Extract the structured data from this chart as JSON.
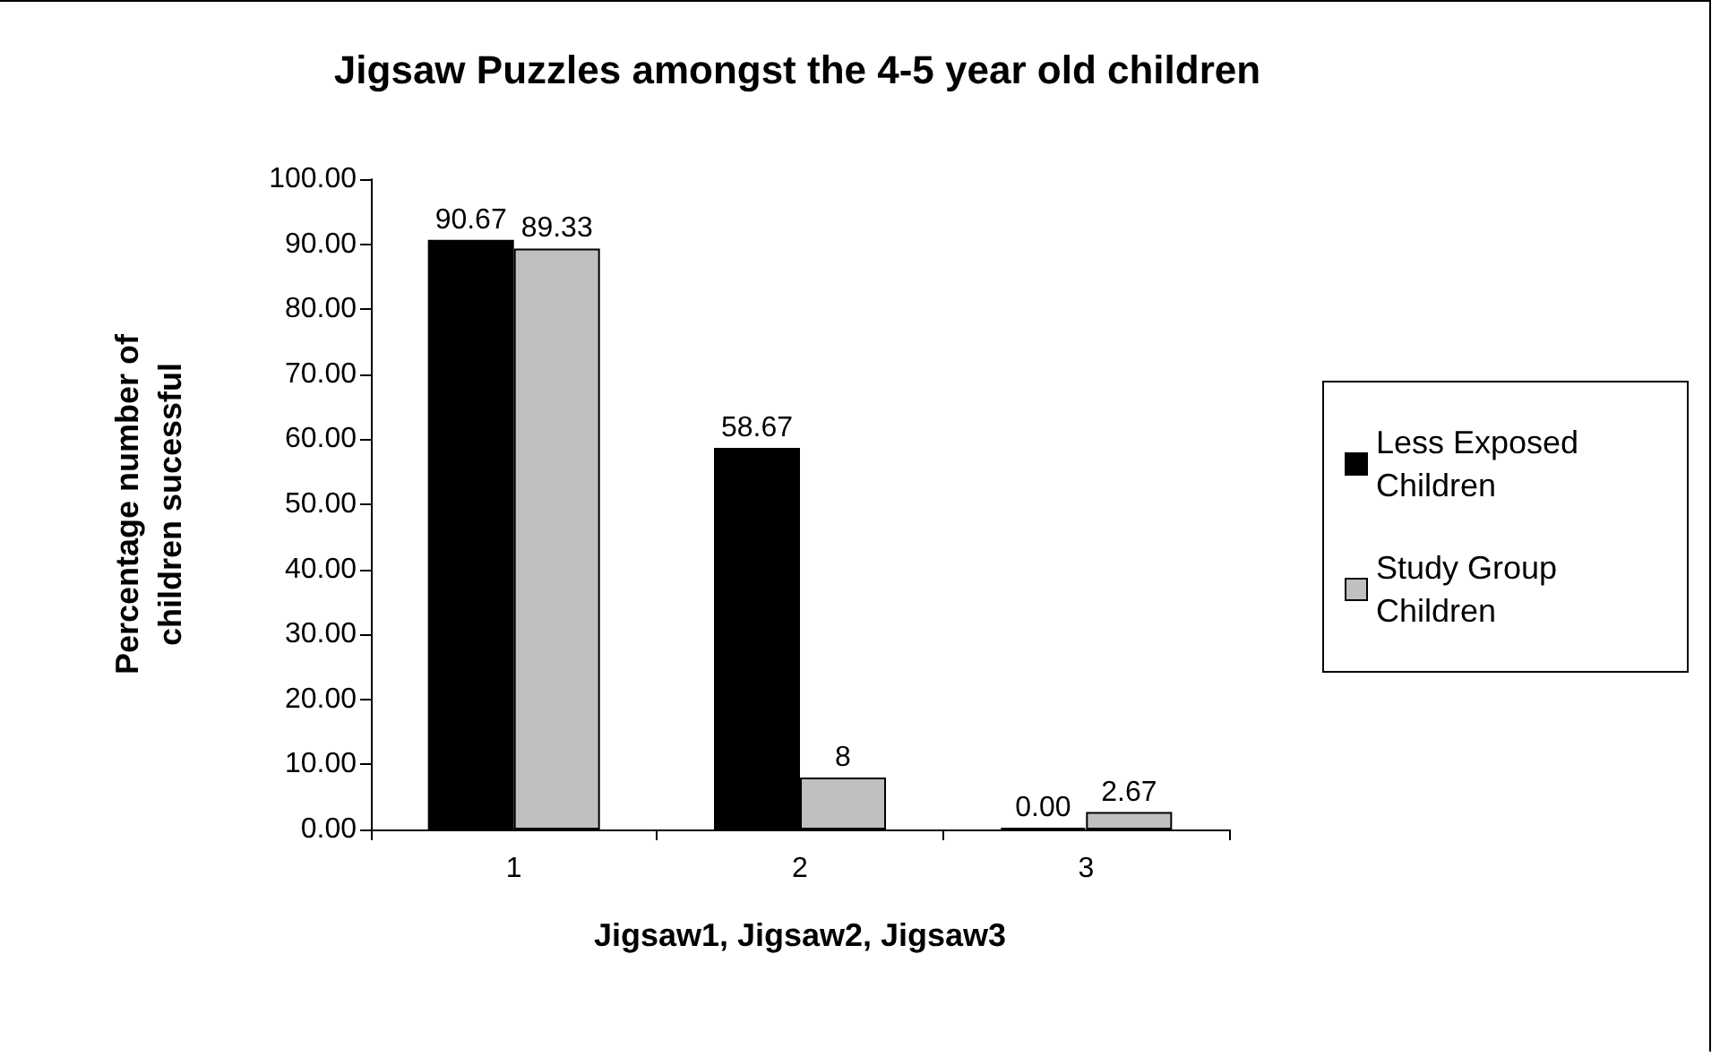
{
  "chart_data": {
    "type": "bar",
    "title": "Jigsaw Puzzles amongst the 4-5 year old children",
    "xlabel": "Jigsaw1, Jigsaw2, Jigsaw3",
    "ylabel": "Percentage number of\nchildren sucessful",
    "categories": [
      "1",
      "2",
      "3"
    ],
    "series": [
      {
        "name": "Less Exposed Children",
        "color": "#000000",
        "values": [
          90.67,
          58.67,
          0
        ],
        "value_labels": [
          "90.67",
          "58.67",
          "0.00"
        ]
      },
      {
        "name": "Study Group Children",
        "color": "#c0c0c0",
        "values": [
          89.33,
          8,
          2.67
        ],
        "value_labels": [
          "89.33",
          "8",
          "2.67"
        ]
      }
    ],
    "ylim": [
      0,
      100
    ],
    "yticks": [
      {
        "value": 0,
        "label": "0.00"
      },
      {
        "value": 10,
        "label": "10.00"
      },
      {
        "value": 20,
        "label": "20.00"
      },
      {
        "value": 30,
        "label": "30.00"
      },
      {
        "value": 40,
        "label": "40.00"
      },
      {
        "value": 50,
        "label": "50.00"
      },
      {
        "value": 60,
        "label": "60.00"
      },
      {
        "value": 70,
        "label": "70.00"
      },
      {
        "value": 80,
        "label": "80.00"
      },
      {
        "value": 90,
        "label": "90.00"
      },
      {
        "value": 100,
        "label": "100.00"
      }
    ],
    "grid": false,
    "legend": "right"
  }
}
